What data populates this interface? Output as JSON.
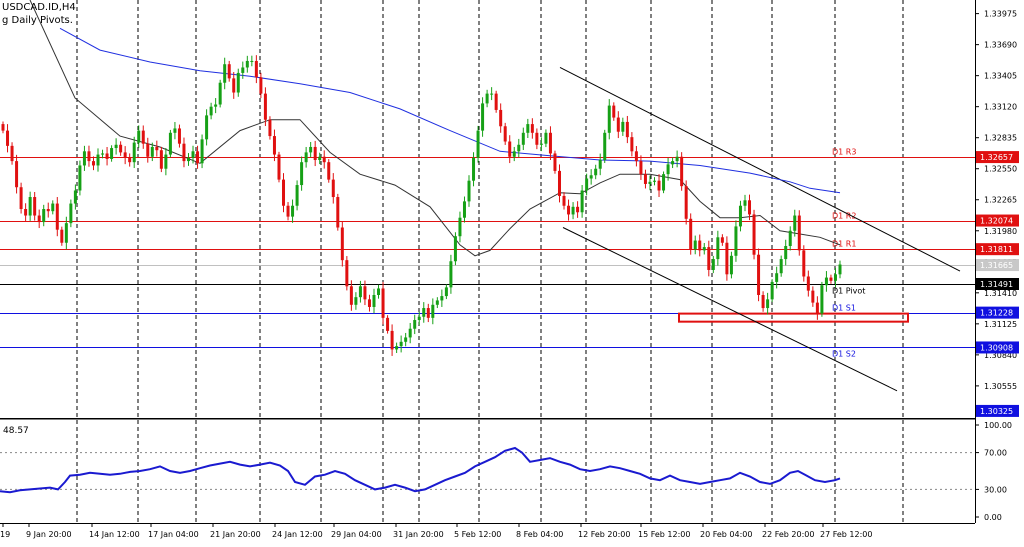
{
  "header": {
    "symbol": "USDCAD.ID,H4",
    "indicator": "g Daily Pivots."
  },
  "chart_data": {
    "type": "candlestick",
    "price_axis": {
      "ylim": [
        1.3026,
        1.341
      ],
      "ticks": [
        "1.33975",
        "1.33690",
        "1.33405",
        "1.33120",
        "1.32835",
        "1.32550",
        "1.32265",
        "1.31980",
        "1.31695",
        "1.31410",
        "1.31125",
        "1.30840",
        "1.30555"
      ]
    },
    "x_axis": {
      "labels": [
        "19",
        "9 Jan 20:00",
        "14 Jan 12:00",
        "17 Jan 04:00",
        "21 Jan 20:00",
        "24 Jan 12:00",
        "29 Jan 04:00",
        "31 Jan 20:00",
        "5 Feb 12:00",
        "8 Feb 04:00",
        "12 Feb 20:00",
        "15 Feb 12:00",
        "20 Feb 04:00",
        "22 Feb 20:00",
        "27 Feb 12:00"
      ]
    },
    "pivot_levels": [
      {
        "name": "D1 R3",
        "price": "1.32657",
        "value": 1.32657,
        "color": "#e01010"
      },
      {
        "name": "D1 R2",
        "price": "1.32074",
        "value": 1.32074,
        "color": "#e01010"
      },
      {
        "name": "D1 R1",
        "price": "1.31811",
        "value": 1.31811,
        "color": "#e01010"
      },
      {
        "name": "D1 Pivot",
        "price": "1.31491",
        "value": 1.31491,
        "color": "#000000"
      },
      {
        "name": "D1 S1",
        "price": "1.31228",
        "value": 1.31228,
        "color": "#1010e0"
      },
      {
        "name": "D1 S2",
        "price": "1.30908",
        "value": 1.30908,
        "color": "#1010e0"
      }
    ],
    "current_price": {
      "price": "1.31665",
      "value": 1.31665
    },
    "bottom_price_label": {
      "price": "1.30325",
      "value": 1.30325
    },
    "series_close": [
      1.329,
      1.3276,
      1.3262,
      1.3238,
      1.3218,
      1.3212,
      1.3229,
      1.3212,
      1.3206,
      1.3218,
      1.3216,
      1.3223,
      1.3199,
      1.3187,
      1.3205,
      1.3223,
      1.3235,
      1.3258,
      1.3271,
      1.3262,
      1.3258,
      1.3268,
      1.3269,
      1.3264,
      1.3274,
      1.3277,
      1.327,
      1.3265,
      1.3261,
      1.3279,
      1.329,
      1.3278,
      1.3266,
      1.3275,
      1.3272,
      1.3255,
      1.3268,
      1.3288,
      1.3292,
      1.3278,
      1.3262,
      1.3265,
      1.3271,
      1.326,
      1.3282,
      1.3304,
      1.3312,
      1.3314,
      1.3334,
      1.3351,
      1.3338,
      1.3325,
      1.3343,
      1.3348,
      1.3354,
      1.3354,
      1.3339,
      1.3324,
      1.33,
      1.3285,
      1.3268,
      1.3245,
      1.3221,
      1.3211,
      1.3221,
      1.324,
      1.3261,
      1.327,
      1.3275,
      1.3263,
      1.3266,
      1.3261,
      1.3245,
      1.3229,
      1.3201,
      1.3171,
      1.3147,
      1.313,
      1.3137,
      1.3147,
      1.3135,
      1.3128,
      1.3139,
      1.3145,
      1.3118,
      1.3106,
      1.3089,
      1.3092,
      1.3096,
      1.31,
      1.3108,
      1.3116,
      1.3119,
      1.3127,
      1.3118,
      1.313,
      1.3134,
      1.3138,
      1.3146,
      1.317,
      1.3193,
      1.321,
      1.3225,
      1.3244,
      1.3265,
      1.329,
      1.3315,
      1.3324,
      1.3324,
      1.3309,
      1.3294,
      1.328,
      1.3266,
      1.3271,
      1.3277,
      1.3288,
      1.3296,
      1.3288,
      1.3277,
      1.3278,
      1.3288,
      1.3269,
      1.3253,
      1.323,
      1.3221,
      1.3213,
      1.322,
      1.3215,
      1.3235,
      1.3246,
      1.3249,
      1.3255,
      1.3263,
      1.3288,
      1.3313,
      1.3302,
      1.3289,
      1.3298,
      1.3284,
      1.3271,
      1.3262,
      1.325,
      1.3241,
      1.3243,
      1.3244,
      1.3235,
      1.325,
      1.3259,
      1.3262,
      1.3266,
      1.3239,
      1.3209,
      1.3181,
      1.3189,
      1.318,
      1.3183,
      1.3162,
      1.3172,
      1.3192,
      1.3187,
      1.3158,
      1.3175,
      1.3202,
      1.3221,
      1.3226,
      1.3213,
      1.3176,
      1.3139,
      1.3127,
      1.3135,
      1.3151,
      1.3159,
      1.3172,
      1.3184,
      1.3198,
      1.3212,
      1.318,
      1.3156,
      1.3143,
      1.3132,
      1.3122,
      1.3148,
      1.3155,
      1.3152,
      1.3158,
      1.3167
    ],
    "ma_black": [
      [
        30,
        1.341
      ],
      [
        75,
        1.332
      ],
      [
        120,
        1.3285
      ],
      [
        160,
        1.3275
      ],
      [
        200,
        1.326
      ],
      [
        240,
        1.329
      ],
      [
        270,
        1.33
      ],
      [
        300,
        1.33
      ],
      [
        330,
        1.327
      ],
      [
        360,
        1.325
      ],
      [
        395,
        1.324
      ],
      [
        430,
        1.322
      ],
      [
        460,
        1.3185
      ],
      [
        475,
        1.3175
      ],
      [
        490,
        1.318
      ],
      [
        510,
        1.32
      ],
      [
        530,
        1.3218
      ],
      [
        560,
        1.3233
      ],
      [
        580,
        1.3232
      ],
      [
        600,
        1.3242
      ],
      [
        620,
        1.325
      ],
      [
        650,
        1.325
      ],
      [
        680,
        1.3245
      ],
      [
        700,
        1.3225
      ],
      [
        720,
        1.321
      ],
      [
        740,
        1.321
      ],
      [
        760,
        1.3212
      ],
      [
        780,
        1.3198
      ],
      [
        800,
        1.3195
      ],
      [
        820,
        1.3192
      ],
      [
        840,
        1.3185
      ]
    ],
    "ma_blue": [
      [
        60,
        1.3384
      ],
      [
        100,
        1.3364
      ],
      [
        150,
        1.3353
      ],
      [
        200,
        1.3345
      ],
      [
        250,
        1.334
      ],
      [
        300,
        1.3333
      ],
      [
        350,
        1.3325
      ],
      [
        400,
        1.331
      ],
      [
        450,
        1.329
      ],
      [
        500,
        1.3271
      ],
      [
        550,
        1.3267
      ],
      [
        600,
        1.3263
      ],
      [
        650,
        1.3262
      ],
      [
        700,
        1.3258
      ],
      [
        750,
        1.3251
      ],
      [
        790,
        1.3243
      ],
      [
        810,
        1.3237
      ],
      [
        840,
        1.3233
      ]
    ],
    "channel_upper": [
      [
        560,
        1.3348
      ],
      [
        960,
        1.3161
      ]
    ],
    "channel_lower": [
      [
        563,
        1.3201
      ],
      [
        897,
        1.3051
      ]
    ],
    "support_zone": {
      "x1": 679,
      "x2": 908,
      "top": 1.31219,
      "bottom": 1.31145
    },
    "rsi": {
      "value_label": "48.57",
      "ticks": [
        "100.00",
        "70.00",
        "30.00",
        "0.00"
      ],
      "ylim": [
        0,
        100
      ],
      "levels": [
        70,
        30
      ],
      "values": [
        [
          0,
          28
        ],
        [
          10,
          27
        ],
        [
          20,
          29
        ],
        [
          30,
          30
        ],
        [
          40,
          31
        ],
        [
          50,
          32
        ],
        [
          58,
          30
        ],
        [
          65,
          38
        ],
        [
          70,
          45
        ],
        [
          80,
          46
        ],
        [
          90,
          48
        ],
        [
          100,
          47
        ],
        [
          110,
          46
        ],
        [
          120,
          47
        ],
        [
          130,
          49
        ],
        [
          140,
          50
        ],
        [
          150,
          52
        ],
        [
          160,
          55
        ],
        [
          170,
          50
        ],
        [
          180,
          48
        ],
        [
          190,
          50
        ],
        [
          200,
          53
        ],
        [
          210,
          56
        ],
        [
          220,
          58
        ],
        [
          230,
          60
        ],
        [
          240,
          57
        ],
        [
          250,
          55
        ],
        [
          260,
          57
        ],
        [
          270,
          59
        ],
        [
          280,
          56
        ],
        [
          288,
          50
        ],
        [
          295,
          38
        ],
        [
          305,
          35
        ],
        [
          315,
          44
        ],
        [
          325,
          46
        ],
        [
          335,
          50
        ],
        [
          345,
          47
        ],
        [
          355,
          40
        ],
        [
          365,
          35
        ],
        [
          375,
          30
        ],
        [
          385,
          32
        ],
        [
          395,
          35
        ],
        [
          405,
          32
        ],
        [
          415,
          28
        ],
        [
          425,
          30
        ],
        [
          435,
          35
        ],
        [
          445,
          40
        ],
        [
          455,
          44
        ],
        [
          465,
          48
        ],
        [
          475,
          55
        ],
        [
          485,
          60
        ],
        [
          495,
          65
        ],
        [
          505,
          72
        ],
        [
          515,
          75
        ],
        [
          522,
          70
        ],
        [
          530,
          60
        ],
        [
          540,
          62
        ],
        [
          550,
          64
        ],
        [
          560,
          60
        ],
        [
          570,
          57
        ],
        [
          580,
          52
        ],
        [
          590,
          50
        ],
        [
          600,
          52
        ],
        [
          610,
          55
        ],
        [
          620,
          53
        ],
        [
          630,
          50
        ],
        [
          640,
          47
        ],
        [
          650,
          42
        ],
        [
          660,
          40
        ],
        [
          670,
          45
        ],
        [
          680,
          40
        ],
        [
          690,
          38
        ],
        [
          700,
          36
        ],
        [
          710,
          38
        ],
        [
          720,
          40
        ],
        [
          730,
          42
        ],
        [
          740,
          48
        ],
        [
          750,
          44
        ],
        [
          760,
          38
        ],
        [
          770,
          36
        ],
        [
          780,
          40
        ],
        [
          790,
          48
        ],
        [
          798,
          50
        ],
        [
          805,
          46
        ],
        [
          815,
          40
        ],
        [
          825,
          38
        ],
        [
          835,
          40
        ],
        [
          840,
          42
        ]
      ]
    }
  }
}
